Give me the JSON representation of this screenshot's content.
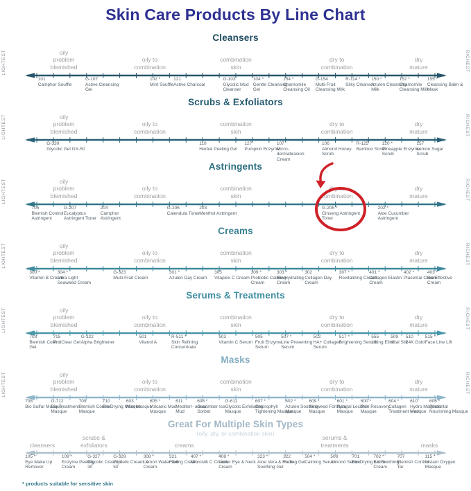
{
  "title": "Skin Care Products By Line Chart",
  "footnote": "* products suitable for sensitive skin",
  "side_labels": {
    "left": "LIGHTEST",
    "right": "RICHEST"
  },
  "colors": {
    "title": "#2e3192",
    "skin_label": "#9b9fa3",
    "product_text": "#54616a",
    "annotation_red": "#cf2127",
    "footnote": "#2d7386"
  },
  "annotation": {
    "row": "astringents",
    "target_product": "G-205 *",
    "x": 70,
    "shape": "red-circle-with-arrow",
    "color": "#cf2127"
  },
  "rows": [
    {
      "id": "cleansers",
      "title": "Cleansers",
      "color": "#1e4a5e",
      "axis_color": "#265468",
      "has_side_labels": true,
      "skin_labels": [
        {
          "x": 10,
          "lines": [
            "oily",
            "problem",
            "blemished"
          ]
        },
        {
          "x": 30,
          "lines": [
            "oily to",
            "combination"
          ]
        },
        {
          "x": 50,
          "lines": [
            "combination",
            "skin"
          ]
        },
        {
          "x": 73.5,
          "lines": [
            "dry to",
            "combination"
          ]
        },
        {
          "x": 92.5,
          "lines": [
            "dry",
            "mature"
          ]
        }
      ],
      "products": [
        {
          "num": "101",
          "name": "Camphor Souffle",
          "x": 4
        },
        {
          "num": "G-107",
          "name": "Active Cleansing Gel",
          "x": 15
        },
        {
          "num": "102 *",
          "name": "Mint Souffle",
          "x": 30
        },
        {
          "num": "121",
          "name": "Active Charcoal",
          "x": 35.5
        },
        {
          "num": "G-103",
          "name": "Glycolic Mud Cleanser",
          "x": 47
        },
        {
          "num": "104 *",
          "name": "Gentle Cleansing Gel",
          "x": 54
        },
        {
          "num": "154 *",
          "name": "Chamomile Cleansing Oil",
          "x": 61
        },
        {
          "num": "G-154",
          "name": "Multi-Fruit Cleansing Milk",
          "x": 68.5
        },
        {
          "num": "R-114 *",
          "name": "Silky Cleanser",
          "x": 75.5
        },
        {
          "num": "150 *",
          "name": "Azulen Cleansing Milk",
          "x": 81.5
        },
        {
          "num": "152 *",
          "name": "Chamomile Cleansing Milk",
          "x": 88
        },
        {
          "num": "155 *",
          "name": "Cleansing Balm & Mask",
          "x": 94.5
        }
      ]
    },
    {
      "id": "scrubs-exfoliators",
      "title": "Scrubs & Exfoliators",
      "color": "#245a70",
      "axis_color": "#2a6076",
      "has_side_labels": true,
      "skin_labels": [
        {
          "x": 10,
          "lines": [
            "oily",
            "problem",
            "blemished"
          ]
        },
        {
          "x": 30,
          "lines": [
            "oily to",
            "combination"
          ]
        },
        {
          "x": 50,
          "lines": [
            "combination",
            "skin"
          ]
        },
        {
          "x": 73.5,
          "lines": [
            "dry to",
            "combination"
          ]
        },
        {
          "x": 92.5,
          "lines": [
            "dry",
            "mature"
          ]
        }
      ],
      "products": [
        {
          "num": "G-330",
          "name": "Glycolic Gel GX-50",
          "x": 6
        },
        {
          "num": "110",
          "name": "Herbal Peeling Gel",
          "x": 41.5
        },
        {
          "num": "127",
          "name": "Pumpkin Enzyme",
          "x": 52
        },
        {
          "num": "107",
          "name": "Micro-dermabrasion Cream",
          "x": 59.5
        },
        {
          "num": "106",
          "name": "Almond Honey Scrub",
          "x": 70
        },
        {
          "num": "R-125",
          "name": "Bamboo Scrub",
          "x": 78
        },
        {
          "num": "120 *",
          "name": "Pineapple Enzyme Scrub",
          "x": 84
        },
        {
          "num": "157",
          "name": "Lemon Sugar Scrub",
          "x": 92
        }
      ]
    },
    {
      "id": "astringents",
      "title": "Astringents",
      "color": "#2b6d80",
      "axis_color": "#317589",
      "has_side_labels": true,
      "skin_labels": [
        {
          "x": 10,
          "lines": [
            "oily",
            "problem",
            "blemished"
          ]
        },
        {
          "x": 30,
          "lines": [
            "oily to",
            "combination"
          ]
        },
        {
          "x": 50,
          "lines": [
            "combination",
            "skin"
          ]
        },
        {
          "x": 73.5,
          "lines": [
            "dry to",
            "combination"
          ]
        },
        {
          "x": 92.5,
          "lines": [
            "dry",
            "mature"
          ]
        }
      ],
      "products": [
        {
          "num": "705",
          "name": "Blemish Control Astringent",
          "x": 2.5
        },
        {
          "num": "G-207",
          "name": "Eucalyptus Astringent Toner",
          "x": 10
        },
        {
          "num": "204",
          "name": "Camphor Astringent",
          "x": 18.5
        },
        {
          "num": "G-206",
          "name": "Calendula Toner",
          "x": 34
        },
        {
          "num": "203",
          "name": "Menthol Astringent",
          "x": 41.5
        },
        {
          "num": "G-205 *",
          "name": "Ginseng Astringent Toner",
          "x": 70
        },
        {
          "num": "202 *",
          "name": "Aloe Cucumber Astringent",
          "x": 83
        }
      ]
    },
    {
      "id": "creams",
      "title": "Creams",
      "color": "#3a8193",
      "axis_color": "#3f8a9d",
      "has_side_labels": true,
      "skin_labels": [
        {
          "x": 10,
          "lines": [
            "oily",
            "problem",
            "blemished"
          ]
        },
        {
          "x": 30,
          "lines": [
            "oily to",
            "combination"
          ]
        },
        {
          "x": 50,
          "lines": [
            "combination",
            "skin"
          ]
        },
        {
          "x": 73.5,
          "lines": [
            "dry to",
            "combination"
          ]
        },
        {
          "x": 92.5,
          "lines": [
            "dry",
            "mature"
          ]
        }
      ],
      "products": [
        {
          "num": "300 *",
          "name": "Vitamin B Cream",
          "x": 2
        },
        {
          "num": "304 *",
          "name": "Ultra Light Seaweed Cream",
          "x": 8.5
        },
        {
          "num": "G-323",
          "name": "Multi-Fruit Cream",
          "x": 21.5
        },
        {
          "num": "301 *",
          "name": "Azulen Day Cream",
          "x": 34.5
        },
        {
          "num": "305",
          "name": "Vitaplex C Cream",
          "x": 45
        },
        {
          "num": "309 *",
          "name": "Probiotic Calming Cream",
          "x": 53.5
        },
        {
          "num": "303 *",
          "name": "Bio Hydrating Cream",
          "x": 59.5
        },
        {
          "num": "302",
          "name": "Collagen Day Cream",
          "x": 66
        },
        {
          "num": "307 *",
          "name": "Revitalizing Cream",
          "x": 74
        },
        {
          "num": "401 *",
          "name": "Collagen Elastin Cream",
          "x": 81
        },
        {
          "num": "402 *",
          "name": "Placental Cream",
          "x": 89
        },
        {
          "num": "403 *",
          "name": "Bio Effective Cream",
          "x": 94.5
        }
      ]
    },
    {
      "id": "serums-treatments",
      "title": "Serums & Treatments",
      "color": "#3f8fa2",
      "axis_color": "#4897aa",
      "has_side_labels": true,
      "skin_labels": [
        {
          "x": 10,
          "lines": [
            "oily",
            "problem",
            "blemished"
          ]
        },
        {
          "x": 30,
          "lines": [
            "oily to",
            "combination"
          ]
        },
        {
          "x": 50,
          "lines": [
            "combination",
            "skin"
          ]
        },
        {
          "x": 73.5,
          "lines": [
            "dry to",
            "combination"
          ]
        },
        {
          "x": 92.5,
          "lines": [
            "dry",
            "mature"
          ]
        }
      ],
      "products": [
        {
          "num": "703",
          "name": "Blemish Control Gel",
          "x": 2
        },
        {
          "num": "715",
          "name": "Pro Clear Gel",
          "x": 7.5
        },
        {
          "num": "G-322",
          "name": "Alpha Brightener",
          "x": 14
        },
        {
          "num": "501",
          "name": "Vitanol A",
          "x": 27.5
        },
        {
          "num": "R-511 *",
          "name": "Skin Refining Concentrate",
          "x": 35
        },
        {
          "num": "503",
          "name": "Vitamin C Serum",
          "x": 46
        },
        {
          "num": "505",
          "name": "Fruit Enzyme Serum",
          "x": 54.5
        },
        {
          "num": "507 *",
          "name": "Line Preventing Serum",
          "x": 60.5
        },
        {
          "num": "502",
          "name": "HA+ Collagen Serum",
          "x": 68
        },
        {
          "num": "517 *",
          "name": "Brightening Serum",
          "x": 74
        },
        {
          "num": "555",
          "name": "Lifting Elixir",
          "x": 81.5
        },
        {
          "num": "509",
          "name": "Vital Silk",
          "x": 86
        },
        {
          "num": "510",
          "name": "24K Gold",
          "x": 89.5
        },
        {
          "num": "515 *",
          "name": "Face Line Lift",
          "x": 94
        }
      ]
    },
    {
      "id": "masks",
      "title": "Masks",
      "color": "#86aec3",
      "axis_color": "#8fb6ca",
      "has_side_labels": true,
      "skin_labels": [
        {
          "x": 10,
          "lines": [
            "oily",
            "problem",
            "blemished"
          ]
        },
        {
          "x": 30,
          "lines": [
            "oily to",
            "combination"
          ]
        },
        {
          "x": 50,
          "lines": [
            "combination",
            "skin"
          ]
        },
        {
          "x": 73.5,
          "lines": [
            "dry to",
            "combination"
          ]
        },
        {
          "x": 92.5,
          "lines": [
            "dry",
            "mature"
          ]
        }
      ],
      "products": [
        {
          "num": "708",
          "name": "Bio Sulfur Masque",
          "x": 1
        },
        {
          "num": "G-712",
          "name": "Bio Treatment Masque",
          "x": 7
        },
        {
          "num": "709",
          "name": "Blemish Control Masque",
          "x": 13.5
        },
        {
          "num": "710",
          "name": "Bio Drying Masque",
          "x": 19
        },
        {
          "num": "603",
          "name": "Mint Masque",
          "x": 24.5
        },
        {
          "num": "605 *",
          "name": "Volcanic Mud Masque",
          "x": 30
        },
        {
          "num": "611",
          "name": "Mediterr- anean Mud",
          "x": 36
        },
        {
          "num": "608 *",
          "name": "Cucumber Ice Sorbet",
          "x": 41
        },
        {
          "num": "G-611",
          "name": "Glycolic Exfoliating Masque",
          "x": 47.5
        },
        {
          "num": "607 *",
          "name": "Chlorophyll Tightening Masque",
          "x": 54.5
        },
        {
          "num": "602 *",
          "name": "Azulen Soothing Masque",
          "x": 61.5
        },
        {
          "num": "609 *",
          "name": "Seaweed Fortifying Masque",
          "x": 67
        },
        {
          "num": "601 *",
          "name": "Natural Lecithin Masque",
          "x": 73.5
        },
        {
          "num": "600 *",
          "name": "Skin Recovery Masque",
          "x": 79
        },
        {
          "num": "604 *",
          "name": "Collagen Treatment Masque",
          "x": 85.5
        },
        {
          "num": "610",
          "name": "Hydro Magnetic Mud",
          "x": 90.5
        },
        {
          "num": "606 *",
          "name": "Placental Nourishing Masque",
          "x": 95
        }
      ]
    },
    {
      "id": "multiple-skin-types",
      "title": "Great For Multiple Skin Types",
      "subtitle": "(oily, dry, or combination skin)",
      "color": "#a2b7c6",
      "axis_color": "#aebfcb",
      "has_side_labels": false,
      "compact": true,
      "skin_labels": [
        {
          "x": 5,
          "lines": [
            "cleansers"
          ]
        },
        {
          "x": 17,
          "lines": [
            "scrubs &",
            "exfoliators"
          ]
        },
        {
          "x": 38,
          "lines": [
            "creams"
          ]
        },
        {
          "x": 73,
          "lines": [
            "serums &",
            "treatments"
          ]
        },
        {
          "x": 95,
          "lines": [
            "masks"
          ]
        }
      ],
      "products": [
        {
          "num": "105 *",
          "name": "Eye Make Up Remover",
          "x": 1
        },
        {
          "num": "109 *",
          "name": "Enzyme Peeling Cream",
          "x": 9.5
        },
        {
          "num": "G-327",
          "name": "Glycolic Cream X-30",
          "x": 15.5
        },
        {
          "num": "G-329",
          "name": "Glycolic Cream X-50",
          "x": 21.5
        },
        {
          "num": "308 *",
          "name": "Lemon Water Gel Cream",
          "x": 28.5
        },
        {
          "num": "321",
          "name": "Fading Cream",
          "x": 34.5
        },
        {
          "num": "407 *",
          "name": "Microsilk C Cream",
          "x": 39.5
        },
        {
          "num": "408 *",
          "name": "Under Eye & Neck Cream",
          "x": 46
        },
        {
          "num": "323 *",
          "name": "Aloe Vera & Herbs Soothing Gel",
          "x": 55
        },
        {
          "num": "322",
          "name": "Fading Gel",
          "x": 61
        },
        {
          "num": "504 *",
          "name": "Calming Serum",
          "x": 66
        },
        {
          "num": "508",
          "name": "Almond Serum",
          "x": 72
        },
        {
          "num": "701",
          "name": "Bio Drying Lotion",
          "x": 77
        },
        {
          "num": "702 *",
          "name": "Bio Soothing Cream",
          "x": 82
        },
        {
          "num": "707",
          "name": "Blemish Control Tar",
          "x": 87.5
        },
        {
          "num": "115 *",
          "name": "Instant Oxygen Masque",
          "x": 94
        }
      ]
    }
  ]
}
